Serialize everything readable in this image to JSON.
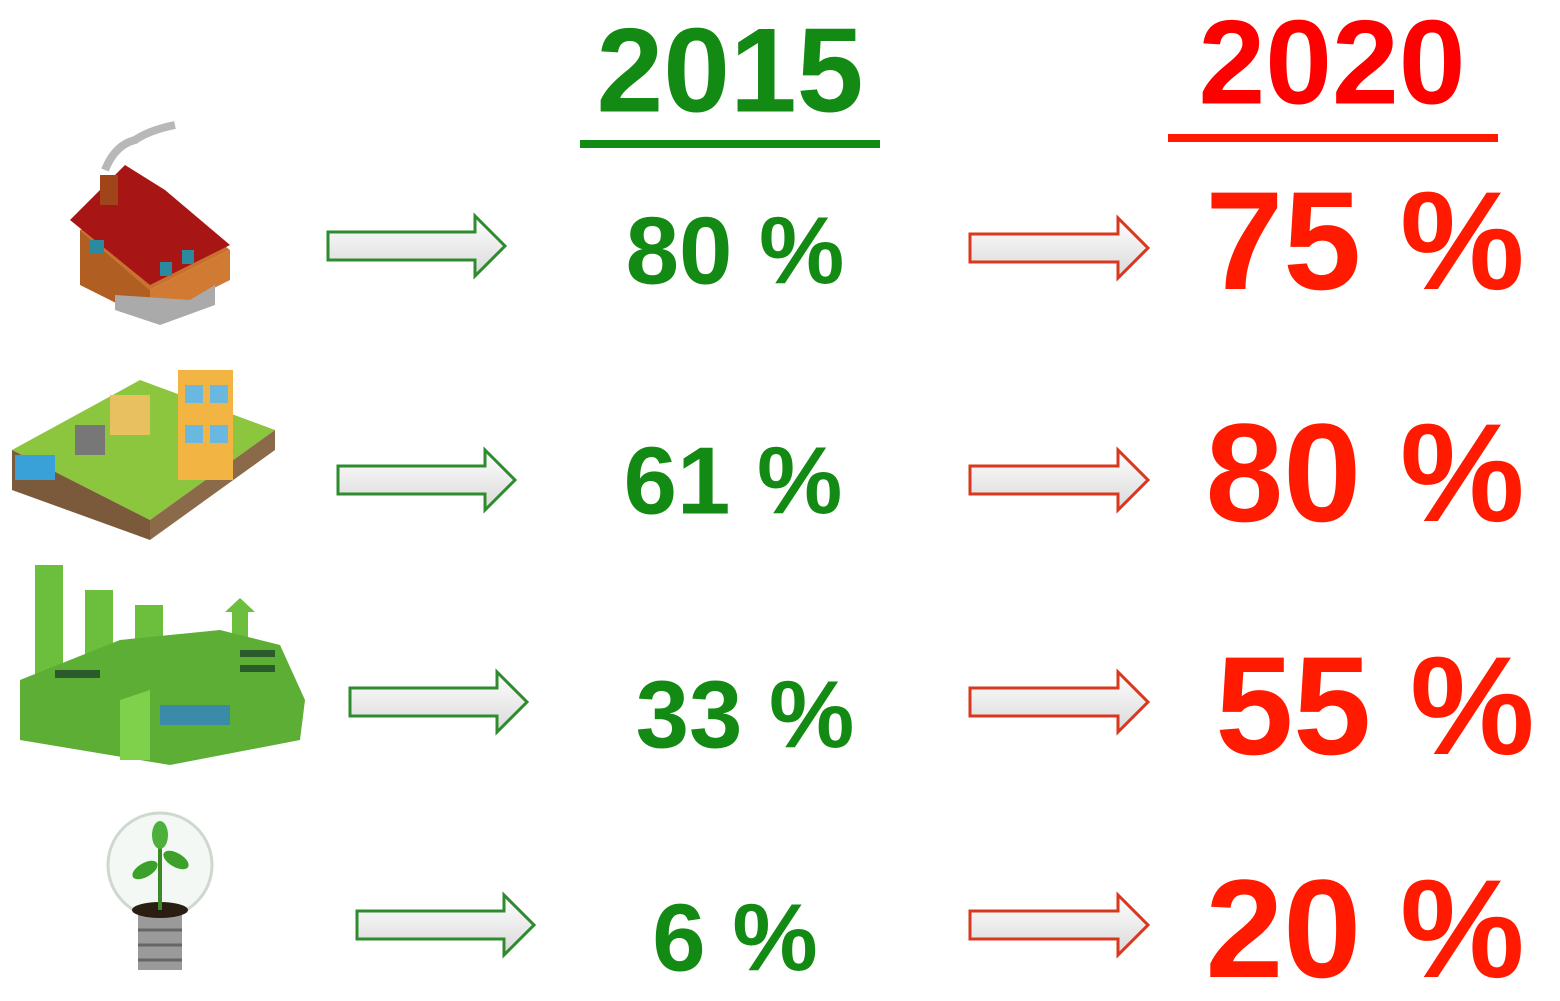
{
  "header": {
    "years": [
      "2015",
      "2020"
    ]
  },
  "rows": [
    {
      "value_2015": "80 %",
      "value_2020": "75 %"
    },
    {
      "value_2015": "61 %",
      "value_2020": "80 %"
    },
    {
      "value_2015": "33 %",
      "value_2020": "55 %"
    },
    {
      "value_2015": "6 %",
      "value_2020": "20 %"
    }
  ]
}
